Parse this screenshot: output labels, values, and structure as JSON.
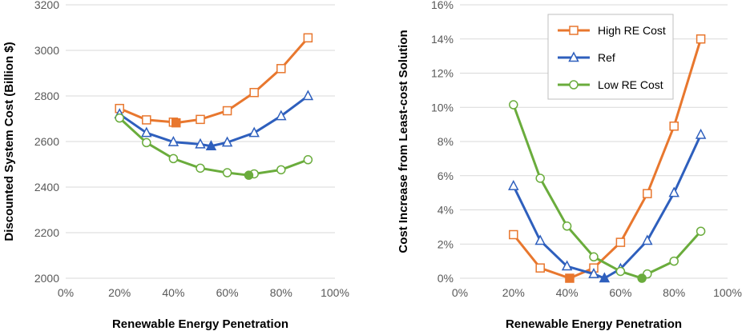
{
  "chart_data": [
    {
      "type": "line",
      "xlabel": "Renewable Energy Penetration",
      "ylabel": "Discounted System Cost (Billion $)",
      "xlim": [
        0,
        100
      ],
      "ylim": [
        2000,
        3200
      ],
      "xticks": [
        0,
        20,
        40,
        60,
        80,
        100
      ],
      "xtick_labels": [
        "0%",
        "20%",
        "40%",
        "60%",
        "80%",
        "100%"
      ],
      "yticks": [
        2000,
        2200,
        2400,
        2600,
        2800,
        3000,
        3200
      ],
      "ytick_labels": [
        "2000",
        "2200",
        "2400",
        "2600",
        "2800",
        "3000",
        "3200"
      ],
      "grid": "horizontal",
      "series": [
        {
          "name": "High RE Cost",
          "color": "#e8772e",
          "marker": "square",
          "x": [
            20,
            30,
            40,
            50,
            60,
            70,
            80,
            90
          ],
          "y": [
            2745,
            2695,
            2685,
            2697,
            2735,
            2815,
            2920,
            3055
          ],
          "optimum": {
            "x": 41,
            "y": 2682
          }
        },
        {
          "name": "Ref",
          "color": "#2e5fbd",
          "marker": "triangle",
          "x": [
            20,
            30,
            40,
            50,
            60,
            70,
            80,
            90
          ],
          "y": [
            2720,
            2638,
            2598,
            2588,
            2596,
            2638,
            2712,
            2800
          ],
          "optimum": {
            "x": 54,
            "y": 2580
          }
        },
        {
          "name": "Low RE Cost",
          "color": "#6aac3c",
          "marker": "circle",
          "x": [
            20,
            30,
            40,
            50,
            60,
            70,
            80,
            90
          ],
          "y": [
            2703,
            2595,
            2525,
            2483,
            2463,
            2458,
            2476,
            2520
          ],
          "optimum": {
            "x": 68,
            "y": 2452
          }
        }
      ]
    },
    {
      "type": "line",
      "xlabel": "Renewable Energy Penetration",
      "ylabel": "Cost Increase from Least-cost Solution",
      "xlim": [
        0,
        100
      ],
      "ylim": [
        0,
        16
      ],
      "xticks": [
        0,
        20,
        40,
        60,
        80,
        100
      ],
      "xtick_labels": [
        "0%",
        "20%",
        "40%",
        "60%",
        "80%",
        "100%"
      ],
      "yticks": [
        0,
        2,
        4,
        6,
        8,
        10,
        12,
        14,
        16
      ],
      "ytick_labels": [
        "0%",
        "2%",
        "4%",
        "6%",
        "8%",
        "10%",
        "12%",
        "14%",
        "16%"
      ],
      "grid": "horizontal",
      "legend": "top-right",
      "series": [
        {
          "name": "High RE Cost",
          "color": "#e8772e",
          "marker": "square",
          "x": [
            20,
            30,
            50,
            60,
            70,
            80,
            90
          ],
          "y": [
            2.55,
            0.6,
            0.6,
            2.1,
            4.95,
            8.9,
            14.0
          ],
          "optimum": {
            "x": 41,
            "y": 0
          }
        },
        {
          "name": "Ref",
          "color": "#2e5fbd",
          "marker": "triangle",
          "x": [
            20,
            30,
            40,
            50,
            60,
            70,
            80,
            90
          ],
          "y": [
            5.4,
            2.2,
            0.7,
            0.25,
            0.55,
            2.2,
            5.0,
            8.4
          ],
          "optimum": {
            "x": 54,
            "y": 0
          }
        },
        {
          "name": "Low RE Cost",
          "color": "#6aac3c",
          "marker": "circle",
          "x": [
            20,
            30,
            40,
            50,
            60,
            70,
            80,
            90
          ],
          "y": [
            10.15,
            5.85,
            3.05,
            1.25,
            0.4,
            0.25,
            1.0,
            2.75
          ],
          "optimum": {
            "x": 68,
            "y": 0
          }
        }
      ]
    }
  ]
}
